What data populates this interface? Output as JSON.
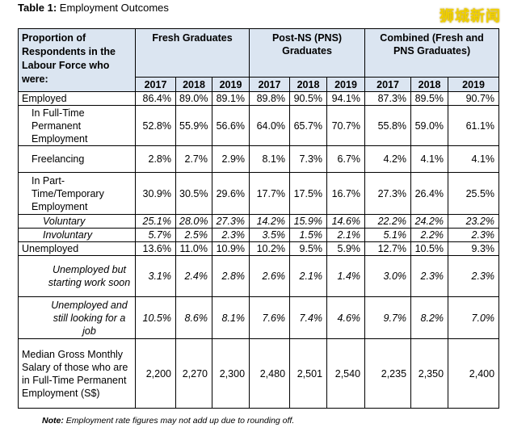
{
  "caption": {
    "prefix": "Table 1:",
    "text": "Employment Outcomes"
  },
  "watermark": "狮城新闻",
  "header": {
    "row_label": "Proportion of Respondents in the Labour Force who were:",
    "groups": [
      "Fresh Graduates",
      "Post-NS (PNS) Graduates",
      "Combined (Fresh and PNS Graduates)"
    ],
    "years": [
      "2017",
      "2018",
      "2019"
    ]
  },
  "rows": [
    {
      "label": "Employed",
      "values": [
        "86.4%",
        "89.0%",
        "89.1%",
        "89.8%",
        "90.5%",
        "94.1%",
        "87.3%",
        "89.5%",
        "90.7%"
      ]
    },
    {
      "label": "In Full-Time Permanent Employment",
      "values": [
        "52.8%",
        "55.9%",
        "56.6%",
        "64.0%",
        "65.7%",
        "70.7%",
        "55.8%",
        "59.0%",
        "61.1%"
      ]
    },
    {
      "label": "Freelancing",
      "values": [
        "2.8%",
        "2.7%",
        "2.9%",
        "8.1%",
        "7.3%",
        "6.7%",
        "4.2%",
        "4.1%",
        "4.1%"
      ]
    },
    {
      "label": "In Part-Time/Temporary Employment",
      "values": [
        "30.9%",
        "30.5%",
        "29.6%",
        "17.7%",
        "17.5%",
        "16.7%",
        "27.3%",
        "26.4%",
        "25.5%"
      ]
    },
    {
      "label": "Voluntary",
      "values": [
        "25.1%",
        "28.0%",
        "27.3%",
        "14.2%",
        "15.9%",
        "14.6%",
        "22.2%",
        "24.2%",
        "23.2%"
      ]
    },
    {
      "label": "Involuntary",
      "values": [
        "5.7%",
        "2.5%",
        "2.3%",
        "3.5%",
        "1.5%",
        "2.1%",
        "5.1%",
        "2.2%",
        "2.3%"
      ]
    },
    {
      "label": "Unemployed",
      "values": [
        "13.6%",
        "11.0%",
        "10.9%",
        "10.2%",
        "9.5%",
        "5.9%",
        "12.7%",
        "10.5%",
        "9.3%"
      ]
    },
    {
      "label": "Unemployed but starting work soon",
      "values": [
        "3.1%",
        "2.4%",
        "2.8%",
        "2.6%",
        "2.1%",
        "1.4%",
        "3.0%",
        "2.3%",
        "2.3%"
      ]
    },
    {
      "label": "Unemployed and still looking for a job",
      "values": [
        "10.5%",
        "8.6%",
        "8.1%",
        "7.6%",
        "7.4%",
        "4.6%",
        "9.7%",
        "8.2%",
        "7.0%"
      ]
    },
    {
      "label": "Median Gross Monthly Salary of those who are in Full-Time Permanent Employment (S$)",
      "values": [
        "2,200",
        "2,270",
        "2,300",
        "2,480",
        "2,501",
        "2,540",
        "2,235",
        "2,350",
        "2,400"
      ]
    }
  ],
  "note": {
    "prefix": "Note:",
    "text": "Employment rate figures may not add up due to rounding off."
  }
}
